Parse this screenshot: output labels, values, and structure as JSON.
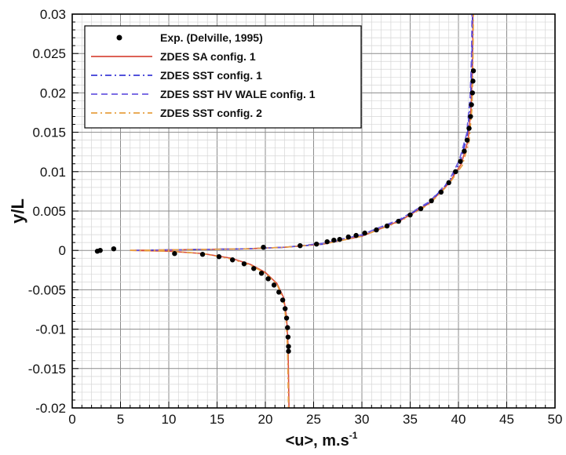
{
  "chart_data": {
    "type": "line",
    "title": "",
    "xlabel": "<u>, m.s",
    "xlabel_sup": "-1",
    "ylabel": "y/L",
    "xlim": [
      0,
      50
    ],
    "ylim": [
      -0.02,
      0.03
    ],
    "x_ticks": [
      0,
      5,
      10,
      15,
      20,
      25,
      30,
      35,
      40,
      45,
      50
    ],
    "x_tick_labels": [
      "0",
      "5",
      "10",
      "15",
      "20",
      "25",
      "30",
      "35",
      "40",
      "45",
      "50"
    ],
    "y_ticks": [
      -0.02,
      -0.015,
      -0.01,
      -0.005,
      0,
      0.005,
      0.01,
      0.015,
      0.02,
      0.025,
      0.03
    ],
    "y_tick_labels": [
      "-0.02",
      "-0.015",
      "-0.01",
      "-0.005",
      "0",
      "0.005",
      "0.01",
      "0.015",
      "0.02",
      "0.025",
      "0.03"
    ],
    "grid": true,
    "minor_grid": true,
    "legend_position": "top-left",
    "legend": [
      {
        "label": "Exp. (Delville, 1995)",
        "style": "marker",
        "color": "#000000"
      },
      {
        "label": "ZDES SA config. 1",
        "style": "solid",
        "color": "#d84c3e"
      },
      {
        "label": "ZDES SST config. 1",
        "style": "dashdot",
        "color": "#3b3bd6"
      },
      {
        "label": "ZDES SST HV WALE config. 1",
        "style": "dashed",
        "color": "#6a5ae0"
      },
      {
        "label": "ZDES SST config. 2",
        "style": "dashdot",
        "color": "#e8a040"
      }
    ],
    "series": [
      {
        "name": "Exp. (Delville, 1995)",
        "kind": "scatter",
        "color": "#000000",
        "points": [
          [
            2.6,
            -0.0001
          ],
          [
            2.9,
            0.0
          ],
          [
            4.3,
            0.0002
          ],
          [
            10.6,
            -0.0004
          ],
          [
            19.8,
            0.0004
          ],
          [
            23.6,
            0.0006
          ],
          [
            25.3,
            0.0008
          ],
          [
            26.4,
            0.0011
          ],
          [
            27.1,
            0.0013
          ],
          [
            27.7,
            0.0014
          ],
          [
            28.6,
            0.0017
          ],
          [
            29.4,
            0.0019
          ],
          [
            30.3,
            0.0022
          ],
          [
            31.5,
            0.0026
          ],
          [
            32.6,
            0.0031
          ],
          [
            33.8,
            0.0037
          ],
          [
            35.0,
            0.0045
          ],
          [
            36.1,
            0.0053
          ],
          [
            37.2,
            0.0063
          ],
          [
            38.2,
            0.0074
          ],
          [
            39.0,
            0.0086
          ],
          [
            39.7,
            0.01
          ],
          [
            40.2,
            0.0113
          ],
          [
            40.6,
            0.0126
          ],
          [
            40.9,
            0.014
          ],
          [
            41.1,
            0.0155
          ],
          [
            41.25,
            0.017
          ],
          [
            41.35,
            0.0185
          ],
          [
            41.45,
            0.02
          ],
          [
            41.5,
            0.0215
          ],
          [
            41.55,
            0.0228
          ],
          [
            13.5,
            -0.0005
          ],
          [
            15.2,
            -0.0008
          ],
          [
            16.6,
            -0.0012
          ],
          [
            17.8,
            -0.0017
          ],
          [
            18.8,
            -0.0023
          ],
          [
            19.6,
            -0.0029
          ],
          [
            20.3,
            -0.0036
          ],
          [
            20.9,
            -0.0044
          ],
          [
            21.4,
            -0.0053
          ],
          [
            21.8,
            -0.0063
          ],
          [
            22.05,
            -0.0074
          ],
          [
            22.2,
            -0.0086
          ],
          [
            22.3,
            -0.0098
          ],
          [
            22.35,
            -0.011
          ],
          [
            22.4,
            -0.0122
          ],
          [
            22.4,
            -0.0128
          ]
        ]
      },
      {
        "name": "ZDES SA config. 1",
        "kind": "line",
        "color": "#d84c3e",
        "points": [
          [
            6.0,
            0.0
          ],
          [
            12.0,
            0.0001
          ],
          [
            18.0,
            0.0002
          ],
          [
            22.0,
            0.0004
          ],
          [
            26.0,
            0.0008
          ],
          [
            30.0,
            0.0018
          ],
          [
            34.0,
            0.0038
          ],
          [
            37.0,
            0.006
          ],
          [
            39.0,
            0.0085
          ],
          [
            40.3,
            0.011
          ],
          [
            41.0,
            0.014
          ],
          [
            41.3,
            0.018
          ],
          [
            41.45,
            0.023
          ],
          [
            41.5,
            0.03
          ]
        ]
      },
      {
        "name": "ZDES SA config. 1 (lower branch)",
        "kind": "line",
        "color": "#d84c3e",
        "points": [
          [
            6.0,
            0.0
          ],
          [
            10.0,
            -0.0001
          ],
          [
            13.5,
            -0.0004
          ],
          [
            16.5,
            -0.001
          ],
          [
            18.5,
            -0.0018
          ],
          [
            20.0,
            -0.0028
          ],
          [
            21.2,
            -0.0042
          ],
          [
            21.9,
            -0.006
          ],
          [
            22.2,
            -0.0085
          ],
          [
            22.35,
            -0.012
          ],
          [
            22.4,
            -0.016
          ],
          [
            22.45,
            -0.02
          ]
        ]
      },
      {
        "name": "ZDES SST config. 1",
        "kind": "line",
        "color": "#3b3bd6",
        "points": [
          [
            6.5,
            0.0
          ],
          [
            12.0,
            0.0001
          ],
          [
            18.0,
            0.0002
          ],
          [
            22.0,
            0.0004
          ],
          [
            26.0,
            0.0008
          ],
          [
            30.0,
            0.0019
          ],
          [
            34.0,
            0.0039
          ],
          [
            37.0,
            0.0061
          ],
          [
            39.0,
            0.0087
          ],
          [
            40.2,
            0.0113
          ],
          [
            40.9,
            0.0145
          ],
          [
            41.25,
            0.019
          ],
          [
            41.4,
            0.024
          ],
          [
            41.45,
            0.03
          ]
        ]
      },
      {
        "name": "ZDES SST HV WALE config. 1",
        "kind": "line",
        "color": "#6a5ae0",
        "points": [
          [
            6.5,
            0.0
          ],
          [
            12.0,
            0.0001
          ],
          [
            18.0,
            0.0002
          ],
          [
            22.0,
            0.0004
          ],
          [
            26.0,
            0.0009
          ],
          [
            30.0,
            0.002
          ],
          [
            34.0,
            0.004
          ],
          [
            37.0,
            0.0062
          ],
          [
            39.0,
            0.0088
          ],
          [
            40.1,
            0.0115
          ],
          [
            40.85,
            0.0148
          ],
          [
            41.2,
            0.0195
          ],
          [
            41.35,
            0.0245
          ],
          [
            41.4,
            0.03
          ]
        ]
      },
      {
        "name": "ZDES SST config. 2",
        "kind": "line",
        "color": "#e8a040",
        "points": [
          [
            6.0,
            0.0
          ],
          [
            12.0,
            0.0001
          ],
          [
            18.0,
            0.0002
          ],
          [
            22.0,
            0.0004
          ],
          [
            26.0,
            0.0008
          ],
          [
            30.0,
            0.0018
          ],
          [
            34.0,
            0.0037
          ],
          [
            37.0,
            0.0059
          ],
          [
            39.0,
            0.0084
          ],
          [
            40.4,
            0.0108
          ],
          [
            41.1,
            0.0138
          ],
          [
            41.4,
            0.018
          ],
          [
            41.5,
            0.023
          ],
          [
            41.55,
            0.03
          ]
        ]
      },
      {
        "name": "ZDES SST config. 2 (lower branch)",
        "kind": "line",
        "color": "#e8a040",
        "points": [
          [
            6.0,
            0.0
          ],
          [
            10.0,
            -0.0001
          ],
          [
            13.5,
            -0.0004
          ],
          [
            16.5,
            -0.0011
          ],
          [
            18.5,
            -0.0019
          ],
          [
            20.0,
            -0.0029
          ],
          [
            21.2,
            -0.0043
          ],
          [
            21.85,
            -0.0062
          ],
          [
            22.15,
            -0.0088
          ],
          [
            22.3,
            -0.0125
          ],
          [
            22.35,
            -0.0165
          ],
          [
            22.4,
            -0.02
          ]
        ]
      }
    ]
  }
}
